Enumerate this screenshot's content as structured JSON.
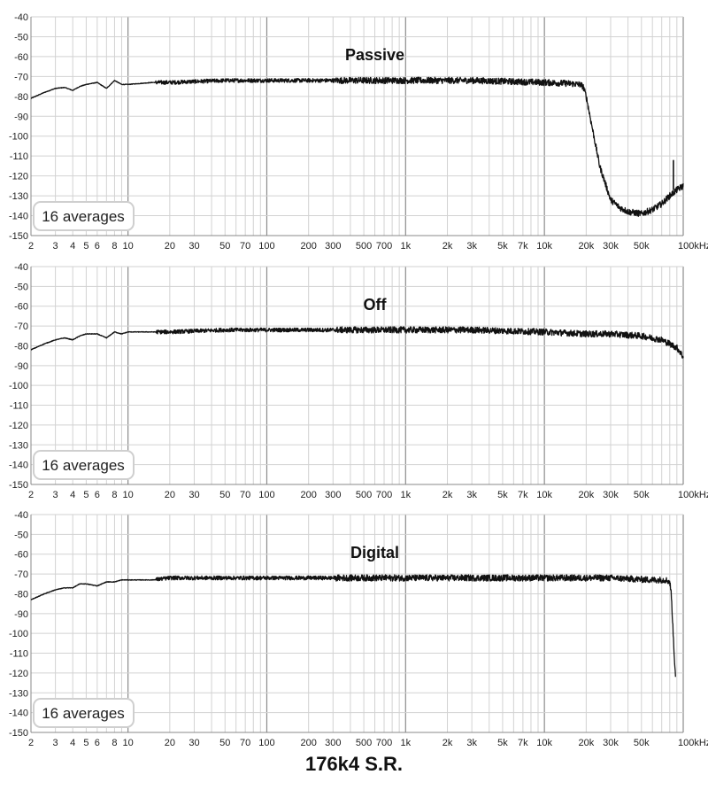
{
  "footer_caption": "176k4 S.R.",
  "colors": {
    "trace": "#111111",
    "grid_minor": "#d2d2d2",
    "grid_major": "#8c8c8c",
    "badge_border": "#cfcfcf",
    "text": "#222222"
  },
  "chart_data": [
    {
      "type": "line",
      "title": "Passive",
      "x_scale": "log",
      "xlim": [
        2,
        100000
      ],
      "ylim": [
        -150,
        -40
      ],
      "y_ticks": [
        -40,
        -50,
        -60,
        -70,
        -80,
        -90,
        -100,
        -110,
        -120,
        -130,
        -140,
        -150
      ],
      "x_ticks": [
        {
          "value": 2,
          "label": "2"
        },
        {
          "value": 3,
          "label": "3"
        },
        {
          "value": 4,
          "label": "4"
        },
        {
          "value": 5,
          "label": "5"
        },
        {
          "value": 6,
          "label": "6"
        },
        {
          "value": 8,
          "label": "8"
        },
        {
          "value": 10,
          "label": "10"
        },
        {
          "value": 20,
          "label": "20"
        },
        {
          "value": 30,
          "label": "30"
        },
        {
          "value": 50,
          "label": "50"
        },
        {
          "value": 70,
          "label": "70"
        },
        {
          "value": 100,
          "label": "100"
        },
        {
          "value": 200,
          "label": "200"
        },
        {
          "value": 300,
          "label": "300"
        },
        {
          "value": 500,
          "label": "500"
        },
        {
          "value": 700,
          "label": "700"
        },
        {
          "value": 1000,
          "label": "1k"
        },
        {
          "value": 2000,
          "label": "2k"
        },
        {
          "value": 3000,
          "label": "3k"
        },
        {
          "value": 5000,
          "label": "5k"
        },
        {
          "value": 7000,
          "label": "7k"
        },
        {
          "value": 10000,
          "label": "10k"
        },
        {
          "value": 20000,
          "label": "20k"
        },
        {
          "value": 30000,
          "label": "30k"
        },
        {
          "value": 50000,
          "label": "50k"
        },
        {
          "value": 100000,
          "label": "100kHz"
        }
      ],
      "badge": "16 averages",
      "grid": true,
      "series": [
        {
          "x": [
            2,
            2.5,
            3,
            3.5,
            4,
            4.5,
            5,
            6,
            7,
            8,
            9,
            10,
            15,
            20,
            50,
            100,
            300,
            1000,
            3000,
            10000,
            15000,
            18000,
            19000,
            20000,
            22000,
            25000,
            30000,
            35000,
            40000,
            50000,
            60000,
            70000,
            80000,
            90000,
            100000
          ],
          "y": [
            -81,
            -78,
            -76,
            -75.5,
            -77,
            -75,
            -74,
            -73,
            -76,
            -72,
            -74,
            -74,
            -73,
            -73,
            -72,
            -72,
            -72,
            -72,
            -72,
            -73,
            -73.5,
            -74,
            -75,
            -80,
            -95,
            -115,
            -132,
            -136,
            -138,
            -139,
            -137,
            -134,
            -130,
            -127,
            -125
          ]
        }
      ],
      "annotations": [
        {
          "x": 85000,
          "y": -112,
          "label": ""
        }
      ]
    },
    {
      "type": "line",
      "title": "Off",
      "x_scale": "log",
      "xlim": [
        2,
        100000
      ],
      "ylim": [
        -150,
        -40
      ],
      "y_ticks": [
        -40,
        -50,
        -60,
        -70,
        -80,
        -90,
        -100,
        -110,
        -120,
        -130,
        -140,
        -150
      ],
      "x_ticks": [
        {
          "value": 2,
          "label": "2"
        },
        {
          "value": 3,
          "label": "3"
        },
        {
          "value": 4,
          "label": "4"
        },
        {
          "value": 5,
          "label": "5"
        },
        {
          "value": 6,
          "label": "6"
        },
        {
          "value": 8,
          "label": "8"
        },
        {
          "value": 10,
          "label": "10"
        },
        {
          "value": 20,
          "label": "20"
        },
        {
          "value": 30,
          "label": "30"
        },
        {
          "value": 50,
          "label": "50"
        },
        {
          "value": 70,
          "label": "70"
        },
        {
          "value": 100,
          "label": "100"
        },
        {
          "value": 200,
          "label": "200"
        },
        {
          "value": 300,
          "label": "300"
        },
        {
          "value": 500,
          "label": "500"
        },
        {
          "value": 700,
          "label": "700"
        },
        {
          "value": 1000,
          "label": "1k"
        },
        {
          "value": 2000,
          "label": "2k"
        },
        {
          "value": 3000,
          "label": "3k"
        },
        {
          "value": 5000,
          "label": "5k"
        },
        {
          "value": 7000,
          "label": "7k"
        },
        {
          "value": 10000,
          "label": "10k"
        },
        {
          "value": 20000,
          "label": "20k"
        },
        {
          "value": 30000,
          "label": "30k"
        },
        {
          "value": 50000,
          "label": "50k"
        },
        {
          "value": 100000,
          "label": "100kHz"
        }
      ],
      "badge": "16 averages",
      "grid": true,
      "series": [
        {
          "x": [
            2,
            2.5,
            3,
            3.5,
            4,
            4.5,
            5,
            6,
            7,
            8,
            9,
            10,
            15,
            20,
            50,
            100,
            300,
            1000,
            3000,
            10000,
            20000,
            30000,
            50000,
            70000,
            80000,
            90000,
            95000,
            100000
          ],
          "y": [
            -82,
            -79,
            -77,
            -76,
            -77,
            -75,
            -74,
            -74,
            -76,
            -73,
            -74,
            -73,
            -73,
            -73,
            -72,
            -72,
            -72,
            -72,
            -72,
            -73,
            -74,
            -74,
            -75,
            -77,
            -79,
            -81,
            -83,
            -86
          ]
        }
      ]
    },
    {
      "type": "line",
      "title": "Digital",
      "x_scale": "log",
      "xlim": [
        2,
        100000
      ],
      "ylim": [
        -150,
        -40
      ],
      "y_ticks": [
        -40,
        -50,
        -60,
        -70,
        -80,
        -90,
        -100,
        -110,
        -120,
        -130,
        -140,
        -150
      ],
      "x_ticks": [
        {
          "value": 2,
          "label": "2"
        },
        {
          "value": 3,
          "label": "3"
        },
        {
          "value": 4,
          "label": "4"
        },
        {
          "value": 5,
          "label": "5"
        },
        {
          "value": 6,
          "label": "6"
        },
        {
          "value": 8,
          "label": "8"
        },
        {
          "value": 10,
          "label": "10"
        },
        {
          "value": 20,
          "label": "20"
        },
        {
          "value": 30,
          "label": "30"
        },
        {
          "value": 50,
          "label": "50"
        },
        {
          "value": 70,
          "label": "70"
        },
        {
          "value": 100,
          "label": "100"
        },
        {
          "value": 200,
          "label": "200"
        },
        {
          "value": 300,
          "label": "300"
        },
        {
          "value": 500,
          "label": "500"
        },
        {
          "value": 700,
          "label": "700"
        },
        {
          "value": 1000,
          "label": "1k"
        },
        {
          "value": 2000,
          "label": "2k"
        },
        {
          "value": 3000,
          "label": "3k"
        },
        {
          "value": 5000,
          "label": "5k"
        },
        {
          "value": 7000,
          "label": "7k"
        },
        {
          "value": 10000,
          "label": "10k"
        },
        {
          "value": 20000,
          "label": "20k"
        },
        {
          "value": 30000,
          "label": "30k"
        },
        {
          "value": 50000,
          "label": "50k"
        },
        {
          "value": 100000,
          "label": "100kHz"
        }
      ],
      "badge": "16 averages",
      "grid": true,
      "series": [
        {
          "x": [
            2,
            2.5,
            3,
            3.5,
            4,
            4.5,
            5,
            6,
            7,
            8,
            9,
            10,
            15,
            20,
            50,
            100,
            300,
            1000,
            3000,
            10000,
            30000,
            60000,
            75000,
            80000,
            82000,
            84000,
            86000,
            88000
          ],
          "y": [
            -83,
            -80,
            -78,
            -77,
            -77,
            -75,
            -75,
            -76,
            -74,
            -74,
            -73,
            -73,
            -73,
            -72,
            -72,
            -72,
            -72,
            -72,
            -72,
            -72,
            -72,
            -73,
            -73,
            -74,
            -80,
            -95,
            -110,
            -121
          ]
        }
      ]
    }
  ]
}
